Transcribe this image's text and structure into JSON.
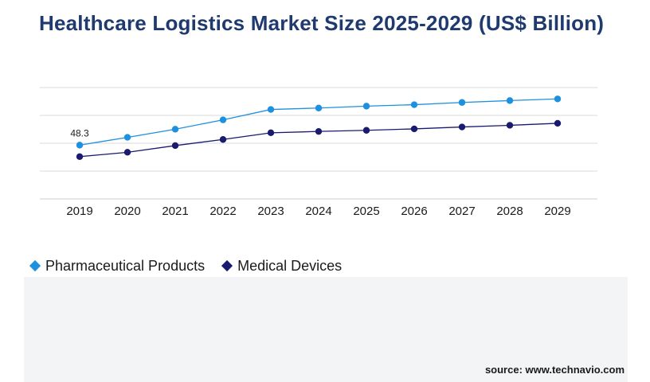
{
  "title": "Healthcare Logistics Market Size 2025-2029 (US$ Billion)",
  "source": "source: www.technavio.com",
  "chart_data": {
    "type": "line",
    "x": [
      "2019",
      "2020",
      "2021",
      "2022",
      "2023",
      "2024",
      "2025",
      "2026",
      "2027",
      "2028",
      "2029"
    ],
    "ylim": [
      0,
      100
    ],
    "grid": true,
    "legend_position": "bottom-left",
    "series": [
      {
        "name": "Pharmaceutical Products",
        "color": "#1e90e0",
        "values": [
          48.3,
          55.3,
          62.6,
          71.0,
          80.3,
          81.6,
          83.3,
          84.6,
          86.6,
          88.3,
          89.8
        ],
        "data_labels": {
          "0": "48.3"
        }
      },
      {
        "name": "Medical Devices",
        "color": "#1a1a6e",
        "values": [
          38.0,
          41.9,
          47.9,
          53.4,
          59.4,
          60.6,
          61.6,
          62.9,
          64.6,
          66.1,
          67.9
        ],
        "data_labels": {}
      }
    ]
  }
}
